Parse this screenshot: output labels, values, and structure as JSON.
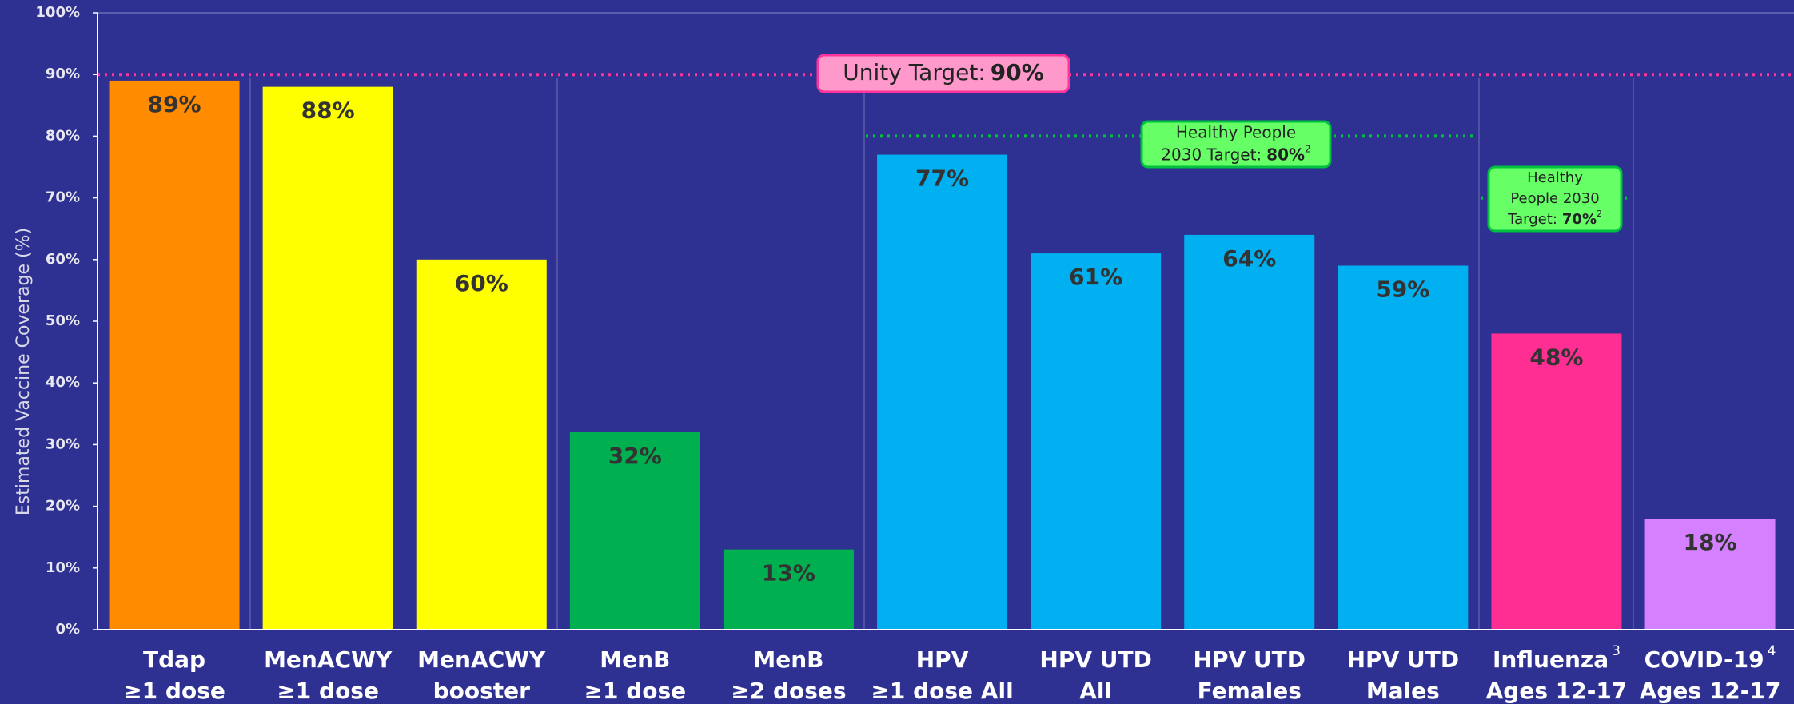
{
  "chart_data": {
    "type": "bar",
    "y_label": "Estimated Vaccine Coverage (%)",
    "categories": [
      "Tdap",
      "MenACWY",
      "MenACWY",
      "MenB",
      "MenB",
      "HPV",
      "HPV UTD",
      "HPV UTD",
      "HPV UTD",
      "Influenza",
      "COVID-19"
    ],
    "category_sublabels": [
      "≥1 dose",
      "≥1 dose",
      "booster",
      "≥1 dose",
      "≥2 doses",
      "≥1 dose All",
      "All",
      "Females",
      "Males",
      "Ages 12-17",
      "Ages 12-17"
    ],
    "category_superscripts": [
      null,
      null,
      null,
      null,
      null,
      null,
      null,
      null,
      null,
      "3",
      "4"
    ],
    "values": [
      89,
      88,
      60,
      32,
      13,
      77,
      61,
      64,
      59,
      48,
      18
    ],
    "value_labels": [
      "89%",
      "88%",
      "60%",
      "32%",
      "13%",
      "77%",
      "61%",
      "64%",
      "59%",
      "48%",
      "18%"
    ],
    "colors": [
      "#ff8c00",
      "#ffff00",
      "#ffff00",
      "#00b050",
      "#00b050",
      "#00b0f0",
      "#00b0f0",
      "#00b0f0",
      "#00b0f0",
      "#ff2e93",
      "#d580ff"
    ],
    "ylim": [
      0,
      100
    ],
    "yticks": [
      {
        "value": 0,
        "label": "0%"
      },
      {
        "value": 10,
        "label": "10%"
      },
      {
        "value": 20,
        "label": "20%"
      },
      {
        "value": 30,
        "label": "30%"
      },
      {
        "value": 40,
        "label": "40%"
      },
      {
        "value": 50,
        "label": "50%"
      },
      {
        "value": 60,
        "label": "60%"
      },
      {
        "value": 70,
        "label": "70%"
      },
      {
        "value": 80,
        "label": "80%"
      },
      {
        "value": 90,
        "label": "90%"
      },
      {
        "value": 100,
        "label": "100%"
      }
    ],
    "grid": false,
    "reference_lines": [
      {
        "value": 90,
        "label_lines": [
          "Unity Target:"
        ],
        "value_label": "90%",
        "note": null,
        "color": "#ff3399",
        "box_color": "#ff99cc"
      },
      {
        "value": 80,
        "label_lines": [
          "Healthy People",
          "2030 Target:"
        ],
        "value_label": "80%",
        "note": "2",
        "color": "#00c040",
        "box_color": "#66ff66"
      },
      {
        "value": 70,
        "label_lines": [
          "Healthy",
          "People 2030",
          "Target:"
        ],
        "value_label": "70%",
        "note": "2",
        "color": "#00c040",
        "box_color": "#66ff66"
      }
    ]
  }
}
